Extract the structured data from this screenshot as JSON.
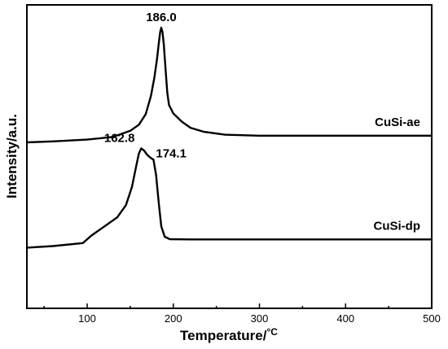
{
  "chart_data": {
    "type": "line",
    "xlabel": "Temperature/",
    "xlabel_unit": "°C",
    "ylabel": "Intensity/a.u.",
    "xlim": [
      30,
      500
    ],
    "ylim": [
      0,
      1
    ],
    "x_ticks": [
      100,
      200,
      300,
      400,
      500
    ],
    "y_ticks_shown": false,
    "grid": false,
    "line_color": "#000000",
    "series": [
      {
        "name": "CuSi-ae",
        "points": [
          [
            30,
            0.547
          ],
          [
            60,
            0.55
          ],
          [
            100,
            0.556
          ],
          [
            130,
            0.565
          ],
          [
            150,
            0.585
          ],
          [
            160,
            0.605
          ],
          [
            168,
            0.64
          ],
          [
            174,
            0.7
          ],
          [
            178,
            0.76
          ],
          [
            181,
            0.82
          ],
          [
            183,
            0.87
          ],
          [
            184.7,
            0.91
          ],
          [
            186,
            0.925
          ],
          [
            187.5,
            0.91
          ],
          [
            189,
            0.87
          ],
          [
            191,
            0.79
          ],
          [
            193,
            0.71
          ],
          [
            195,
            0.67
          ],
          [
            200,
            0.642
          ],
          [
            210,
            0.615
          ],
          [
            220,
            0.595
          ],
          [
            235,
            0.582
          ],
          [
            260,
            0.572
          ],
          [
            300,
            0.569
          ],
          [
            400,
            0.569
          ],
          [
            500,
            0.569
          ]
        ]
      },
      {
        "name": "CuSi-dp",
        "points": [
          [
            30,
            0.2
          ],
          [
            60,
            0.205
          ],
          [
            95,
            0.215
          ],
          [
            105,
            0.24
          ],
          [
            120,
            0.27
          ],
          [
            135,
            0.3
          ],
          [
            145,
            0.34
          ],
          [
            152,
            0.4
          ],
          [
            157,
            0.47
          ],
          [
            160,
            0.51
          ],
          [
            162.8,
            0.527
          ],
          [
            166,
            0.52
          ],
          [
            170,
            0.505
          ],
          [
            174.1,
            0.495
          ],
          [
            177,
            0.49
          ],
          [
            180,
            0.44
          ],
          [
            183,
            0.35
          ],
          [
            186,
            0.27
          ],
          [
            190,
            0.236
          ],
          [
            196,
            0.228
          ],
          [
            220,
            0.227
          ],
          [
            300,
            0.227
          ],
          [
            400,
            0.227
          ],
          [
            500,
            0.227
          ]
        ]
      }
    ],
    "series_labels": [
      {
        "series": "CuSi-ae",
        "text": "CuSi-ae"
      },
      {
        "series": "CuSi-dp",
        "text": "CuSi-dp"
      }
    ],
    "annotations": [
      {
        "text": "186.0",
        "x": 186.0,
        "series": "CuSi-ae"
      },
      {
        "text": "162.8",
        "x": 162.8,
        "series": "CuSi-dp"
      },
      {
        "text": "174.1",
        "x": 174.1,
        "series": "CuSi-dp"
      }
    ]
  }
}
